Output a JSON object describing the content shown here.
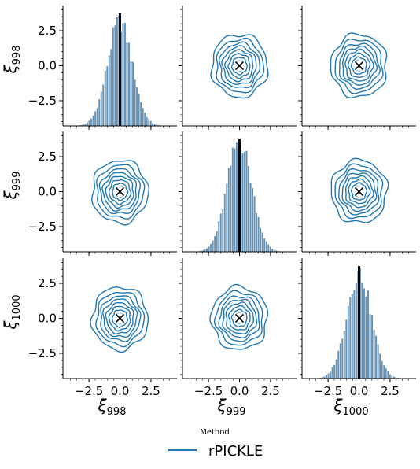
{
  "chart_data": {
    "type": "pairplot",
    "variables": [
      "998",
      "999",
      "1000"
    ],
    "axis_symbol": "ξ",
    "xlim": [
      -4.6,
      4.6
    ],
    "ylim": [
      -4.3,
      4.3
    ],
    "ticks": [
      -2.5,
      0.0,
      2.5
    ],
    "tick_labels": [
      "−2.5",
      "0.0",
      "2.5"
    ],
    "diagonal": {
      "type": "histogram",
      "bar_color": "#4e7fa6",
      "true_value": 0.0,
      "true_line_color": "#000000",
      "distribution": {
        "mean": 0.0,
        "std": 1.0,
        "bin_width": 0.16,
        "range": [
          -3.5,
          3.5
        ]
      }
    },
    "offdiagonal": {
      "type": "kde_contour",
      "contour_color": "#1f77b4",
      "contour_radii": [
        0.35,
        0.6,
        0.85,
        1.1,
        1.35,
        1.6,
        1.9,
        2.25
      ],
      "true_value": [
        0.0,
        0.0
      ],
      "true_marker": "x"
    },
    "legend": {
      "title": "Method",
      "entries": [
        {
          "name": "rPICKLE",
          "color": "#1f77b4"
        }
      ],
      "placement": "bottom-center"
    }
  }
}
